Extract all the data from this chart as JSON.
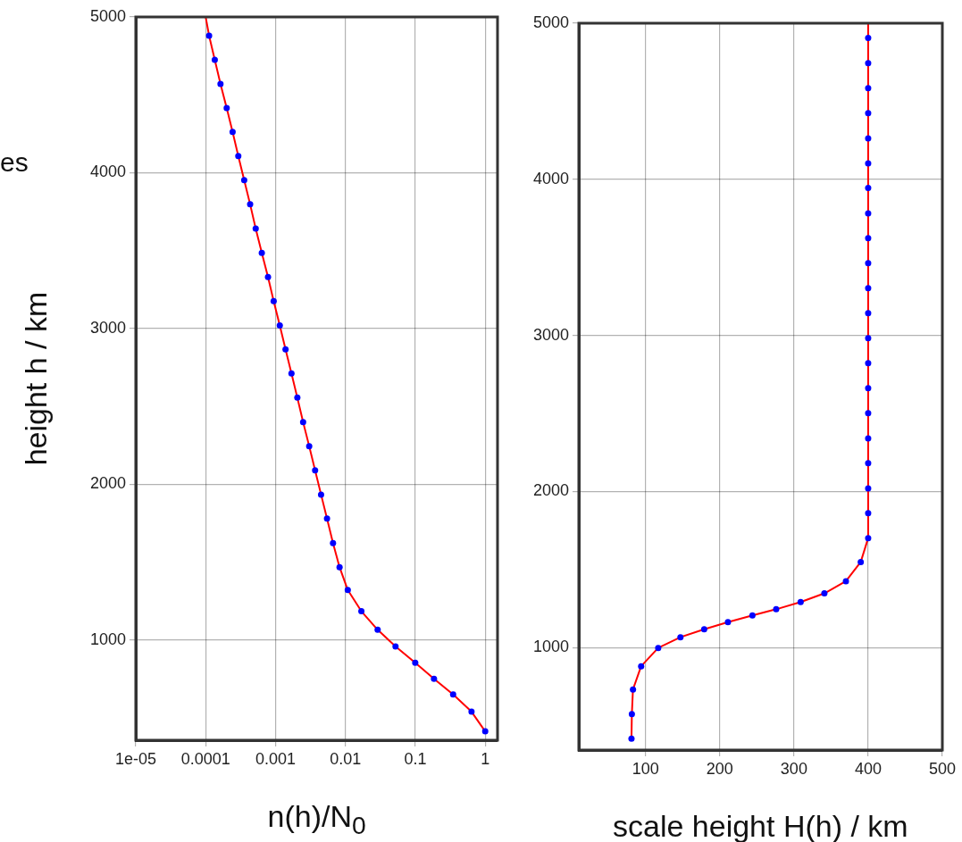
{
  "chart_data": [
    {
      "type": "line",
      "xlabel": "n(h)/N$_{0}$",
      "ylabel": "height h / km",
      "annotations": [
        "es"
      ],
      "log": "x",
      "grid": true,
      "legend": false,
      "line_style": "solid",
      "xlim": [
        1e-05,
        1.5
      ],
      "xticks": [
        {
          "value": 1e-05,
          "label": "1e-05"
        },
        0.0001,
        0.001,
        0.01,
        0.1,
        1
      ],
      "ylim": [
        357,
        5000
      ],
      "yticks": [
        1000,
        2000,
        3000,
        4000,
        5000
      ],
      "series": [
        {
          "color": "#ff0000",
          "marker": "none",
          "x": [
            1,
            0.637,
            0.347,
            0.185,
            0.0997,
            0.0521,
            0.0289,
            0.0169,
            0.0108,
            0.00824,
            0.00664,
            0.00545,
            0.00448,
            0.00368,
            0.00303,
            0.00248,
            0.00205,
            0.00169,
            0.00139,
            0.00115,
            0.00094,
            0.00078,
            0.000636,
            0.00052,
            0.000433,
            0.000356,
            0.000293,
            0.000243,
            0.0002,
            0.000163,
            0.000135,
            0.000112,
            0.0001
          ],
          "values": [
            414,
            540,
            651,
            751,
            854,
            959,
            1066,
            1185,
            1321,
            1468,
            1623,
            1780,
            1934,
            2089,
            2245,
            2399,
            2556,
            2711,
            2866,
            3019,
            3176,
            3330,
            3485,
            3642,
            3797,
            3952,
            4107,
            4262,
            4415,
            4570,
            4725,
            4880,
            5000
          ]
        },
        {
          "type": "scatter",
          "color": "#0000ff",
          "marker": "circle",
          "x": [
            1,
            0.637,
            0.347,
            0.185,
            0.0997,
            0.0521,
            0.0289,
            0.0169,
            0.0108,
            0.00824,
            0.00664,
            0.00545,
            0.00448,
            0.00368,
            0.00303,
            0.00248,
            0.00205,
            0.00169,
            0.00139,
            0.00115,
            0.00094,
            0.00078,
            0.000636,
            0.00052,
            0.000433,
            0.000356,
            0.000293,
            0.000243,
            0.0002,
            0.000163,
            0.000135,
            0.000112
          ],
          "values": [
            414,
            540,
            651,
            751,
            854,
            959,
            1066,
            1185,
            1321,
            1468,
            1623,
            1780,
            1934,
            2089,
            2245,
            2399,
            2556,
            2711,
            2866,
            3019,
            3176,
            3330,
            3485,
            3642,
            3797,
            3952,
            4107,
            4262,
            4415,
            4570,
            4725,
            4880
          ]
        }
      ]
    },
    {
      "type": "line",
      "xlabel": "scale height H(h) / km",
      "grid": true,
      "legend": false,
      "line_style": "solid",
      "xlim": [
        10,
        500
      ],
      "xticks": [
        100,
        200,
        300,
        400,
        500
      ],
      "ylim": [
        343,
        5000
      ],
      "yticks": [
        1000,
        2000,
        3000,
        4000,
        5000
      ],
      "series": [
        {
          "color": "#ff0000",
          "marker": "none",
          "x": [
            81,
            81.5,
            83,
            94,
            117,
            147,
            179,
            211,
            244,
            276,
            309,
            341,
            370,
            390,
            400,
            400,
            400,
            400,
            400,
            400,
            400,
            400,
            400,
            400,
            400,
            400,
            400,
            400,
            400,
            400,
            400,
            400,
            400,
            400,
            400,
            400
          ],
          "values": [
            416,
            573,
            731,
            880,
            997,
            1066,
            1117,
            1163,
            1205,
            1245,
            1291,
            1347,
            1425,
            1548,
            1701,
            1861,
            2019,
            2181,
            2340,
            2501,
            2662,
            2822,
            2982,
            3142,
            3302,
            3462,
            3622,
            3782,
            3944,
            4102,
            4262,
            4423,
            4584,
            4744,
            4905,
            5000
          ]
        },
        {
          "type": "scatter",
          "color": "#0000ff",
          "marker": "circle",
          "x": [
            81,
            81.5,
            83,
            94,
            117,
            147,
            179,
            211,
            244,
            276,
            309,
            341,
            370,
            390,
            400,
            400,
            400,
            400,
            400,
            400,
            400,
            400,
            400,
            400,
            400,
            400,
            400,
            400,
            400,
            400,
            400,
            400,
            400,
            400,
            400
          ],
          "values": [
            416,
            573,
            731,
            880,
            997,
            1066,
            1117,
            1163,
            1205,
            1245,
            1291,
            1347,
            1425,
            1548,
            1701,
            1861,
            2019,
            2181,
            2340,
            2501,
            2662,
            2822,
            2982,
            3142,
            3302,
            3462,
            3622,
            3782,
            3944,
            4102,
            4262,
            4423,
            4584,
            4744,
            4905
          ]
        }
      ]
    }
  ]
}
